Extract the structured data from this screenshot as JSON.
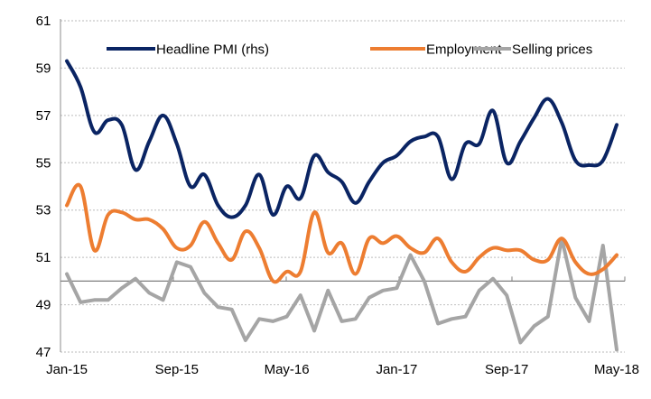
{
  "chart_data": {
    "type": "line",
    "title": "",
    "xlabel": "",
    "ylabel": "",
    "ylim": [
      47,
      61
    ],
    "yticks": [
      47,
      49,
      51,
      53,
      55,
      57,
      59,
      61
    ],
    "ytick_labels": [
      "47",
      "49",
      "51",
      "53",
      "55",
      "57",
      "59",
      "61"
    ],
    "reference_line": 50,
    "grid": true,
    "legend_position": "top",
    "x": [
      "Jan-15",
      "Feb-15",
      "Mar-15",
      "Apr-15",
      "May-15",
      "Jun-15",
      "Jul-15",
      "Aug-15",
      "Sep-15",
      "Oct-15",
      "Nov-15",
      "Dec-15",
      "Jan-16",
      "Feb-16",
      "Mar-16",
      "Apr-16",
      "May-16",
      "Jun-16",
      "Jul-16",
      "Aug-16",
      "Sep-16",
      "Oct-16",
      "Nov-16",
      "Dec-16",
      "Jan-17",
      "Feb-17",
      "Mar-17",
      "Apr-17",
      "May-17",
      "Jun-17",
      "Jul-17",
      "Aug-17",
      "Sep-17",
      "Oct-17",
      "Nov-17",
      "Dec-17",
      "Jan-18",
      "Feb-18",
      "Mar-18",
      "Apr-18",
      "May-18"
    ],
    "xtick_labels": [
      "Jan-15",
      "Sep-15",
      "May-16",
      "Jan-17",
      "Sep-17",
      "May-18"
    ],
    "xtick_indices": [
      0,
      8,
      16,
      24,
      32,
      40
    ],
    "series": [
      {
        "name": "Headline PMI (rhs)",
        "color": "#0a2463",
        "smooth": true,
        "values": [
          59.3,
          58.2,
          56.3,
          56.8,
          56.6,
          54.7,
          55.9,
          57.0,
          55.8,
          54.0,
          54.5,
          53.2,
          52.7,
          53.2,
          54.5,
          52.8,
          54.0,
          53.5,
          55.3,
          54.6,
          54.2,
          53.3,
          54.2,
          55.0,
          55.3,
          55.9,
          56.1,
          56.1,
          54.3,
          55.8,
          55.8,
          57.2,
          55.0,
          55.9,
          56.9,
          57.7,
          56.7,
          55.1,
          54.9,
          55.1,
          56.6
        ]
      },
      {
        "name": "Employment",
        "color": "#ed7d31",
        "smooth": true,
        "values": [
          53.2,
          54.0,
          51.3,
          52.8,
          52.9,
          52.6,
          52.6,
          52.2,
          51.4,
          51.5,
          52.5,
          51.6,
          50.9,
          52.1,
          51.4,
          50.0,
          50.4,
          50.4,
          52.9,
          51.2,
          51.6,
          50.3,
          51.8,
          51.6,
          51.9,
          51.4,
          51.2,
          51.8,
          50.8,
          50.4,
          51.0,
          51.4,
          51.3,
          51.3,
          50.9,
          50.9,
          51.8,
          50.8,
          50.3,
          50.5,
          51.1
        ]
      },
      {
        "name": "Selling prices",
        "color": "#a5a5a5",
        "smooth": false,
        "values": [
          50.3,
          49.1,
          49.2,
          49.2,
          49.7,
          50.1,
          49.5,
          49.2,
          50.8,
          50.6,
          49.5,
          48.9,
          48.8,
          47.5,
          48.4,
          48.3,
          48.5,
          49.4,
          47.9,
          49.6,
          48.3,
          48.4,
          49.3,
          49.6,
          49.7,
          51.1,
          50.0,
          48.2,
          48.4,
          48.5,
          49.6,
          50.1,
          49.4,
          47.4,
          48.1,
          48.5,
          51.8,
          49.3,
          48.3,
          51.5,
          47.1
        ]
      }
    ]
  }
}
